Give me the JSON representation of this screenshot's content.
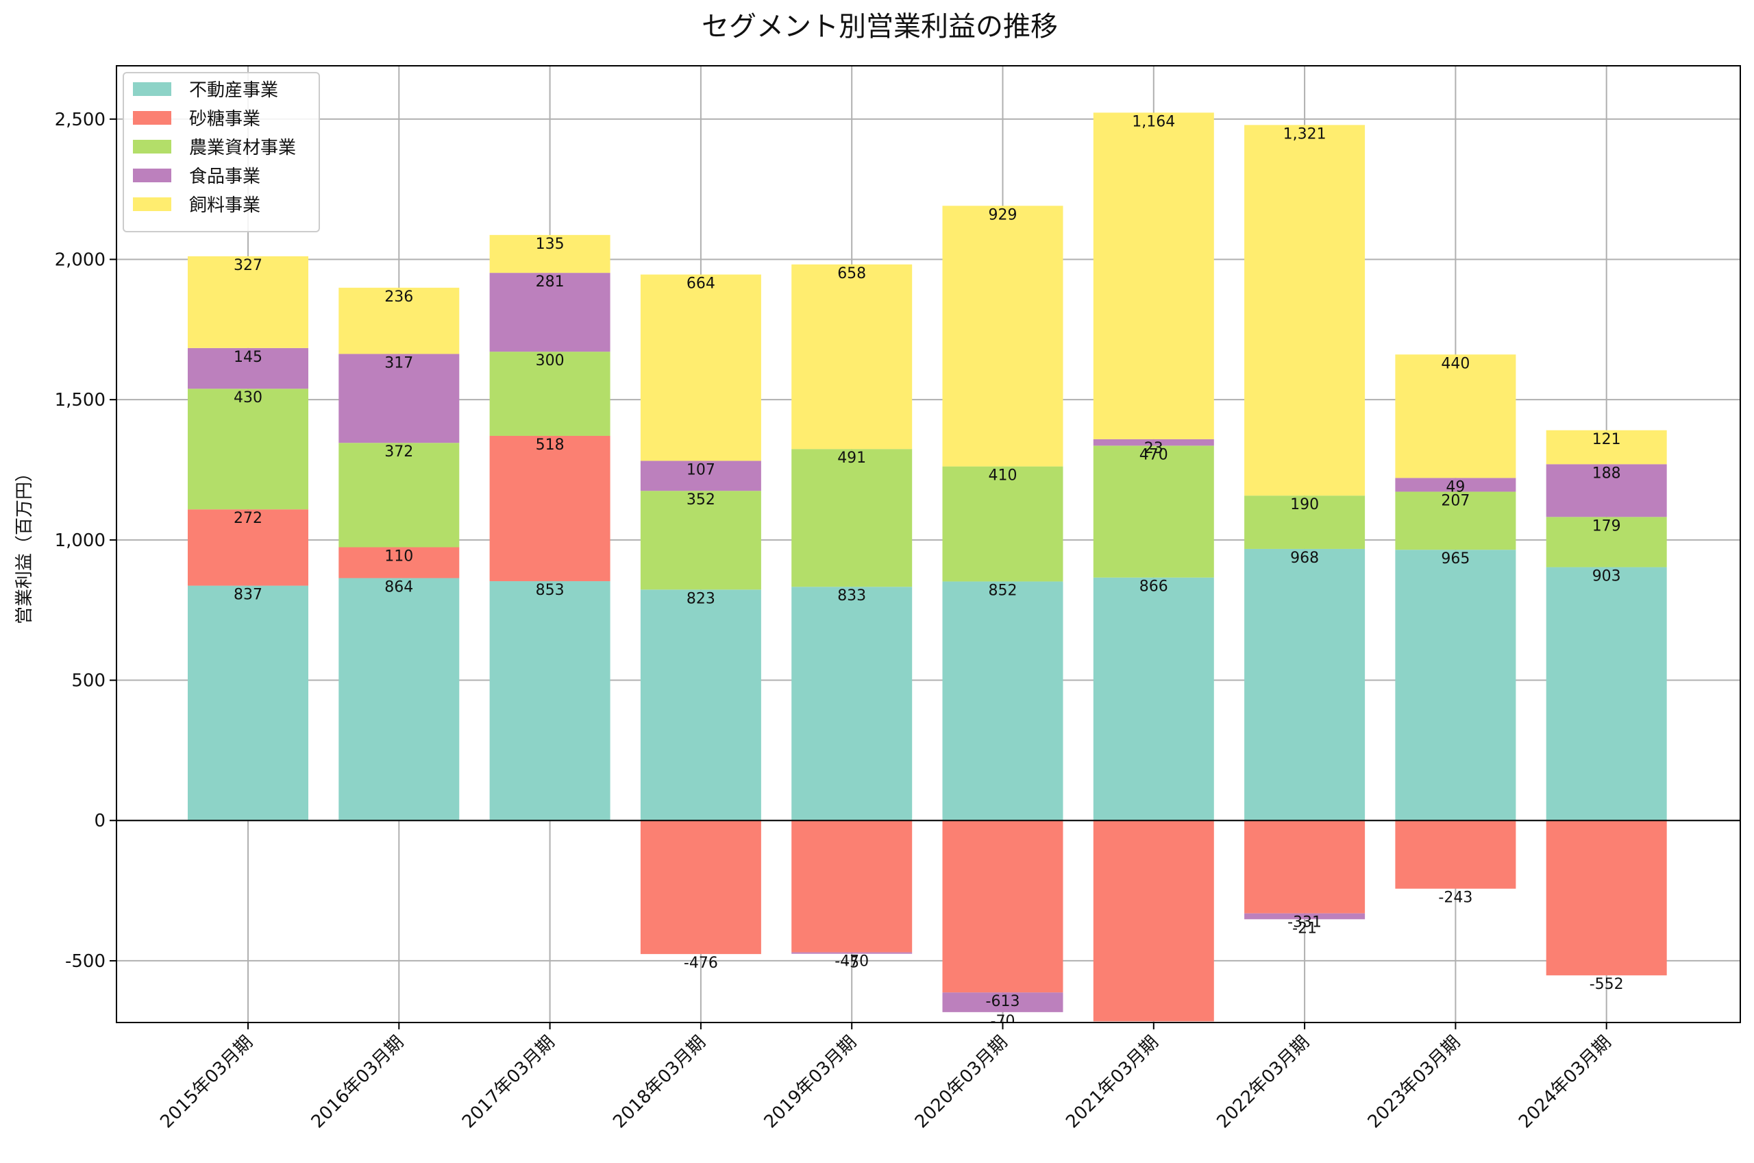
{
  "chart_data": {
    "type": "bar",
    "stacked": true,
    "title": "セグメント別営業利益の推移",
    "ylabel": "営業利益（百万円）",
    "xlabel": "",
    "ylim": [
      -720,
      2690
    ],
    "yticks": [
      -500,
      0,
      500,
      1000,
      1500,
      2000,
      2500
    ],
    "ytick_labels": [
      "-500",
      "0",
      "500",
      "1,000",
      "1,500",
      "2,000",
      "2,500"
    ],
    "grid": true,
    "legend_position": "top-left",
    "categories": [
      "2015年03月期",
      "2016年03月期",
      "2017年03月期",
      "2018年03月期",
      "2019年03月期",
      "2020年03月期",
      "2021年03月期",
      "2022年03月期",
      "2023年03月期",
      "2024年03月期"
    ],
    "series": [
      {
        "name": "不動産事業",
        "color": "#8dd3c7",
        "values": [
          837,
          864,
          853,
          823,
          833,
          852,
          866,
          968,
          965,
          903
        ]
      },
      {
        "name": "砂糖事業",
        "color": "#fb8072",
        "values": [
          272,
          110,
          518,
          -476,
          -470,
          -613,
          -716,
          -331,
          -243,
          -552
        ]
      },
      {
        "name": "農業資材事業",
        "color": "#b3de69",
        "values": [
          430,
          372,
          300,
          352,
          491,
          410,
          470,
          190,
          207,
          179
        ]
      },
      {
        "name": "食品事業",
        "color": "#bc80bd",
        "values": [
          145,
          317,
          281,
          107,
          -5,
          -70,
          23,
          -21,
          49,
          188
        ]
      },
      {
        "name": "飼料事業",
        "color": "#ffed6f",
        "values": [
          327,
          236,
          135,
          664,
          658,
          929,
          1164,
          1321,
          440,
          121
        ]
      }
    ]
  }
}
